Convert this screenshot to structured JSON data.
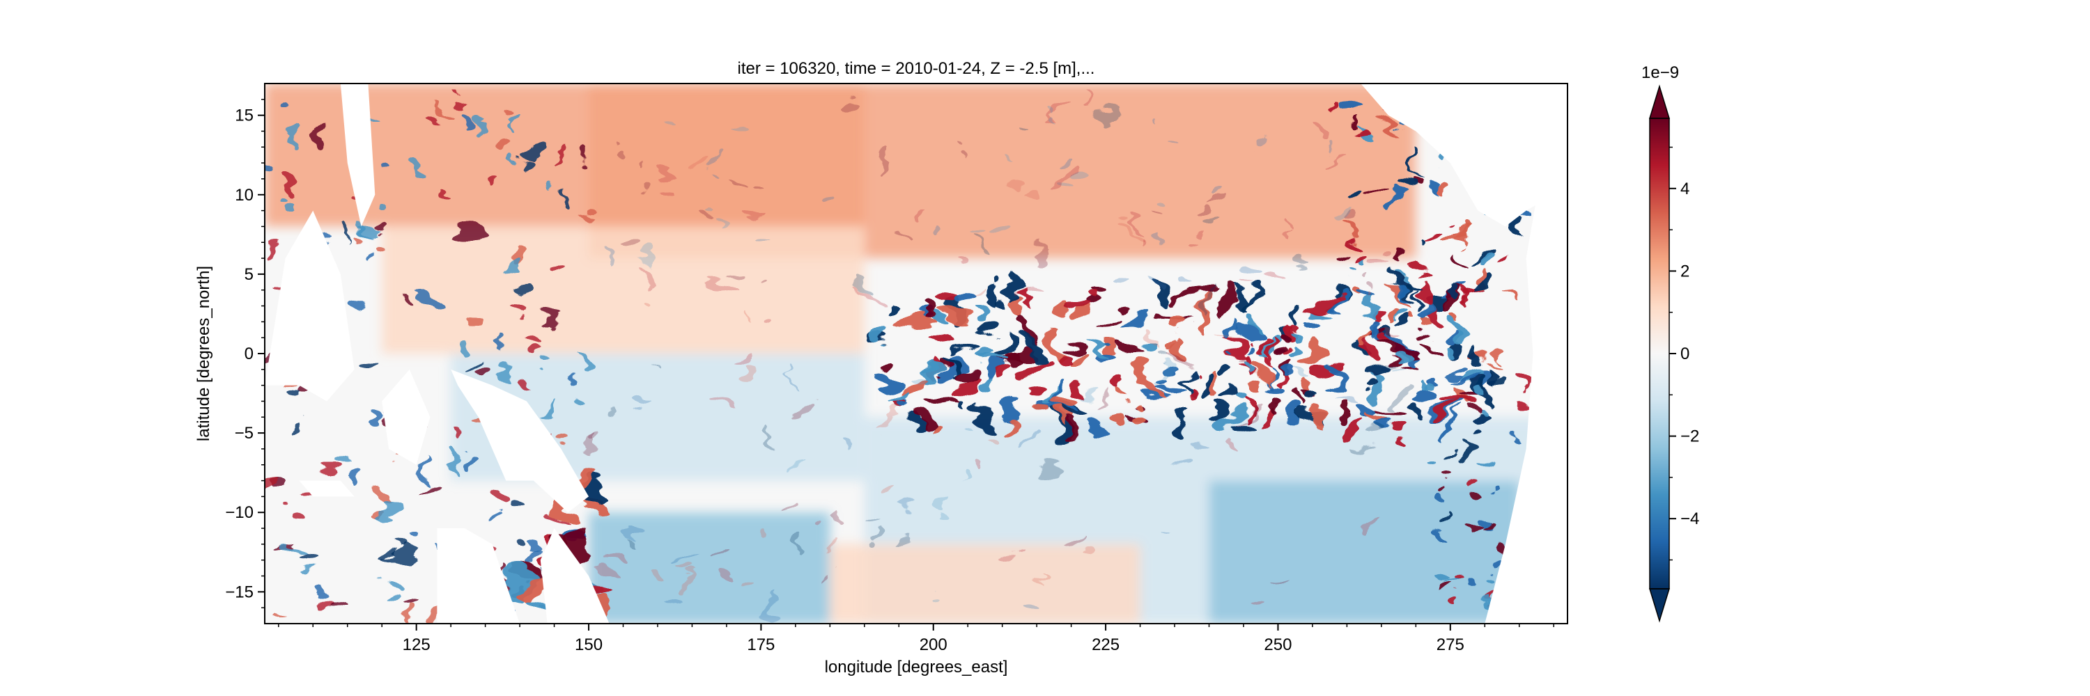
{
  "chart_data": {
    "type": "heatmap",
    "title": "iter = 106320, time = 2010-01-24, Z = -2.5 [m],...",
    "xlabel": "longitude [degrees_east]",
    "ylabel": "latitude [degrees_north]",
    "xlim": [
      103,
      292
    ],
    "ylim": [
      -17,
      17
    ],
    "x_ticks": [
      125,
      150,
      175,
      200,
      225,
      250,
      275
    ],
    "y_ticks": [
      15,
      10,
      5,
      0,
      -5,
      -10,
      -15
    ],
    "colormap": "RdBu_r",
    "colorbar": {
      "vmin": -5.7,
      "vmax": 5.7,
      "extend": "both",
      "ticks": [
        4,
        2,
        0,
        -2,
        -4
      ],
      "tick_labels": [
        "4",
        "2",
        "0",
        "−2",
        "−4"
      ],
      "scale_label": "1e−9"
    },
    "grid": false,
    "colors": {
      "strong_positive": "#67001f",
      "positive": "#d6604d",
      "weak_positive": "#f4a582",
      "neutral": "#f7f7f7",
      "weak_negative": "#92c5de",
      "negative": "#4393c3",
      "strong_negative": "#053061",
      "land": "#ffffff"
    }
  }
}
